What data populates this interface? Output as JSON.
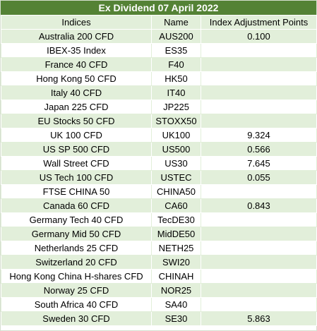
{
  "title": "Ex Dividend 07 April 2022",
  "headers": [
    "Indices",
    "Name",
    "Index Adjustment Points"
  ],
  "rows": [
    [
      "Australia 200 CFD",
      "AUS200",
      "0.100"
    ],
    [
      "IBEX-35 Index",
      "ES35",
      ""
    ],
    [
      "France 40 CFD",
      "F40",
      ""
    ],
    [
      "Hong Kong 50 CFD",
      "HK50",
      ""
    ],
    [
      "Italy 40 CFD",
      "IT40",
      ""
    ],
    [
      "Japan 225 CFD",
      "JP225",
      ""
    ],
    [
      "EU Stocks 50 CFD",
      "STOXX50",
      ""
    ],
    [
      "UK 100 CFD",
      "UK100",
      "9.324"
    ],
    [
      "US SP 500 CFD",
      "US500",
      "0.566"
    ],
    [
      "Wall Street CFD",
      "US30",
      "7.645"
    ],
    [
      "US Tech 100 CFD",
      "USTEC",
      "0.055"
    ],
    [
      "FTSE CHINA 50",
      "CHINA50",
      ""
    ],
    [
      "Canada 60 CFD",
      "CA60",
      "0.843"
    ],
    [
      "Germany Tech 40 CFD",
      "TecDE30",
      ""
    ],
    [
      "Germany Mid 50 CFD",
      "MidDE50",
      ""
    ],
    [
      "Netherlands 25 CFD",
      "NETH25",
      ""
    ],
    [
      "Switzerland 20 CFD",
      "SWI20",
      ""
    ],
    [
      "Hong Kong China H-shares CFD",
      "CHINAH",
      ""
    ],
    [
      "Norway 25 CFD",
      "NOR25",
      ""
    ],
    [
      "South Africa 40 CFD",
      "SA40",
      ""
    ],
    [
      "Sweden 30 CFD",
      "SE30",
      "5.863"
    ]
  ],
  "colors": {
    "header_bg": "#548235",
    "band": "#e2efda"
  }
}
